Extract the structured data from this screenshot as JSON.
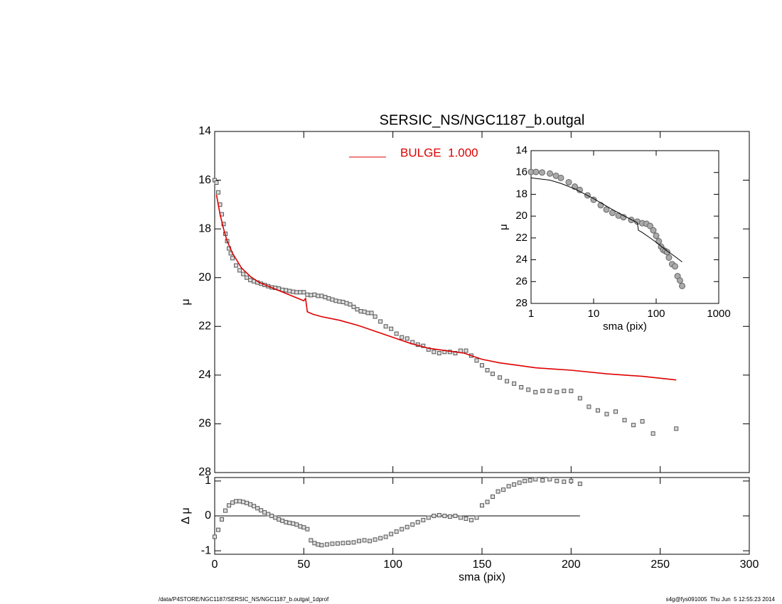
{
  "chart_data": [
    {
      "type": "scatter",
      "title": "SERSIC_NS/NGC1187_b.outgal",
      "ylabel": "μ",
      "xlim": [
        0,
        300
      ],
      "xticks": [
        0,
        50,
        100,
        150,
        200,
        250,
        300
      ],
      "show_xtick_labels": false,
      "ylim": [
        28,
        14
      ],
      "yticks": [
        14,
        16,
        18,
        20,
        22,
        24,
        26,
        28
      ],
      "legend": "top-center",
      "series": [
        {
          "color": "#555555",
          "marker": "square",
          "x": [
            0,
            1,
            2,
            3,
            4,
            5,
            6,
            7,
            8,
            9,
            10,
            12,
            14,
            16,
            18,
            20,
            22,
            24,
            26,
            28,
            30,
            32,
            34,
            36,
            38,
            40,
            42,
            44,
            46,
            48,
            50,
            52,
            54,
            56,
            58,
            60,
            62,
            64,
            66,
            68,
            70,
            72,
            74,
            76,
            78,
            80,
            82,
            84,
            86,
            88,
            90,
            93,
            96,
            99,
            102,
            105,
            108,
            111,
            114,
            117,
            120,
            123,
            126,
            129,
            132,
            135,
            138,
            141,
            144,
            147,
            150,
            153,
            156,
            160,
            164,
            168,
            172,
            176,
            180,
            184,
            188,
            192,
            196,
            200,
            205,
            210,
            215,
            220,
            225,
            230,
            235,
            240,
            246,
            259
          ],
          "values": [
            16.0,
            16.1,
            16.5,
            17.0,
            17.4,
            17.8,
            18.2,
            18.5,
            18.8,
            19.0,
            19.2,
            19.5,
            19.7,
            19.85,
            20.0,
            20.1,
            20.15,
            20.2,
            20.25,
            20.3,
            20.35,
            20.4,
            20.42,
            20.45,
            20.5,
            20.52,
            20.55,
            20.58,
            20.6,
            20.6,
            20.6,
            20.7,
            20.72,
            20.7,
            20.75,
            20.75,
            20.8,
            20.85,
            20.9,
            20.95,
            20.98,
            21.0,
            21.05,
            21.1,
            21.2,
            21.3,
            21.38,
            21.4,
            21.45,
            21.45,
            21.6,
            21.8,
            22.0,
            22.1,
            22.3,
            22.45,
            22.5,
            22.65,
            22.75,
            22.8,
            22.95,
            23.05,
            23.1,
            23.05,
            23.05,
            23.1,
            23.0,
            23.0,
            23.2,
            23.4,
            23.6,
            23.8,
            23.95,
            24.1,
            24.25,
            24.35,
            24.5,
            24.6,
            24.7,
            24.65,
            24.65,
            24.7,
            24.65,
            24.65,
            24.95,
            25.3,
            25.45,
            25.6,
            25.5,
            25.85,
            26.05,
            25.9,
            26.4,
            26.2
          ]
        },
        {
          "name": "BULGE  1.000",
          "color": "#dd0000",
          "style": "line",
          "x": [
            1,
            2,
            3,
            5,
            7,
            10,
            15,
            20,
            25,
            30,
            40,
            50,
            51,
            52,
            55,
            60,
            70,
            80,
            90,
            100,
            110,
            120,
            130,
            140,
            150,
            160,
            170,
            180,
            190,
            200,
            220,
            240,
            259
          ],
          "values": [
            16.6,
            17.0,
            17.4,
            18.0,
            18.5,
            19.0,
            19.6,
            19.95,
            20.2,
            20.35,
            20.65,
            20.95,
            20.85,
            21.4,
            21.5,
            21.6,
            21.75,
            21.95,
            22.2,
            22.45,
            22.7,
            22.9,
            23.0,
            23.1,
            23.35,
            23.5,
            23.6,
            23.7,
            23.75,
            23.8,
            23.95,
            24.05,
            24.2
          ]
        }
      ]
    },
    {
      "type": "scatter",
      "xlabel": "sma (pix)",
      "ylabel": "Δ μ",
      "xlim": [
        0,
        300
      ],
      "xticks": [
        0,
        50,
        100,
        150,
        200,
        250,
        300
      ],
      "ylim": [
        -1.1,
        1.1
      ],
      "yticks": [
        -1,
        0,
        1
      ],
      "hline": 0,
      "series": [
        {
          "color": "#555555",
          "marker": "square",
          "x": [
            0,
            2,
            4,
            6,
            8,
            10,
            12,
            14,
            16,
            18,
            20,
            22,
            24,
            26,
            28,
            30,
            32,
            34,
            36,
            38,
            40,
            42,
            44,
            46,
            48,
            50,
            52,
            54,
            56,
            58,
            60,
            63,
            66,
            69,
            72,
            75,
            78,
            81,
            84,
            87,
            90,
            93,
            96,
            99,
            102,
            105,
            108,
            111,
            114,
            117,
            120,
            123,
            126,
            129,
            132,
            135,
            138,
            141,
            144,
            147,
            150,
            153,
            156,
            159,
            162,
            165,
            168,
            171,
            174,
            177,
            180,
            184,
            188,
            192,
            196,
            200,
            205
          ],
          "values": [
            -0.6,
            -0.4,
            -0.1,
            0.15,
            0.3,
            0.38,
            0.42,
            0.42,
            0.4,
            0.37,
            0.33,
            0.28,
            0.22,
            0.16,
            0.1,
            0.05,
            0.0,
            -0.05,
            -0.1,
            -0.14,
            -0.18,
            -0.2,
            -0.22,
            -0.25,
            -0.3,
            -0.33,
            -0.38,
            -0.7,
            -0.78,
            -0.82,
            -0.84,
            -0.82,
            -0.8,
            -0.79,
            -0.78,
            -0.77,
            -0.76,
            -0.72,
            -0.7,
            -0.72,
            -0.68,
            -0.64,
            -0.6,
            -0.52,
            -0.45,
            -0.38,
            -0.32,
            -0.25,
            -0.18,
            -0.12,
            -0.05,
            0.0,
            0.02,
            0.0,
            -0.02,
            0.0,
            -0.05,
            -0.08,
            -0.12,
            -0.05,
            0.3,
            0.4,
            0.55,
            0.7,
            0.75,
            0.85,
            0.9,
            0.95,
            1.0,
            1.02,
            1.05,
            1.02,
            1.05,
            1.0,
            0.98,
            1.0,
            0.92
          ]
        }
      ]
    },
    {
      "type": "scatter",
      "xlabel": "sma (pix)",
      "ylabel": "μ",
      "xlog": true,
      "xlim": [
        1,
        1000
      ],
      "xticks": [
        1,
        10,
        100,
        1000
      ],
      "ylim": [
        28,
        14
      ],
      "yticks": [
        14,
        16,
        18,
        20,
        22,
        24,
        26,
        28
      ],
      "series": [
        {
          "color": "#666666",
          "marker": "circle",
          "x": [
            1,
            1.2,
            1.5,
            2,
            2.5,
            3,
            4,
            5,
            6,
            8,
            10,
            13,
            16,
            20,
            25,
            30,
            40,
            50,
            60,
            70,
            80,
            90,
            100,
            110,
            120,
            130,
            140,
            150,
            160,
            180,
            200,
            220,
            240,
            260
          ],
          "values": [
            15.95,
            15.95,
            16.0,
            16.1,
            16.3,
            16.5,
            16.9,
            17.3,
            17.6,
            18.1,
            18.5,
            19.0,
            19.4,
            19.7,
            19.95,
            20.1,
            20.35,
            20.5,
            20.65,
            20.7,
            20.9,
            21.3,
            21.8,
            22.3,
            22.8,
            23.1,
            23.2,
            23.3,
            23.8,
            24.4,
            24.6,
            25.5,
            25.9,
            26.4
          ]
        },
        {
          "color": "#000000",
          "style": "line",
          "x": [
            1,
            2,
            3,
            5,
            10,
            20,
            30,
            50,
            52,
            60,
            80,
            100,
            150,
            200,
            260
          ],
          "values": [
            16.5,
            16.7,
            17.0,
            17.5,
            18.4,
            19.4,
            19.95,
            20.6,
            21.3,
            21.5,
            22.0,
            22.4,
            23.2,
            23.7,
            24.2
          ]
        }
      ]
    }
  ],
  "footer": {
    "left": "/data/P4STORE/NGC1187/SERSIC_NS/NGC1187_b.outgal_1dprof",
    "right": "s4g@fys091005  Thu Jun  5 12:55:23 2014"
  }
}
